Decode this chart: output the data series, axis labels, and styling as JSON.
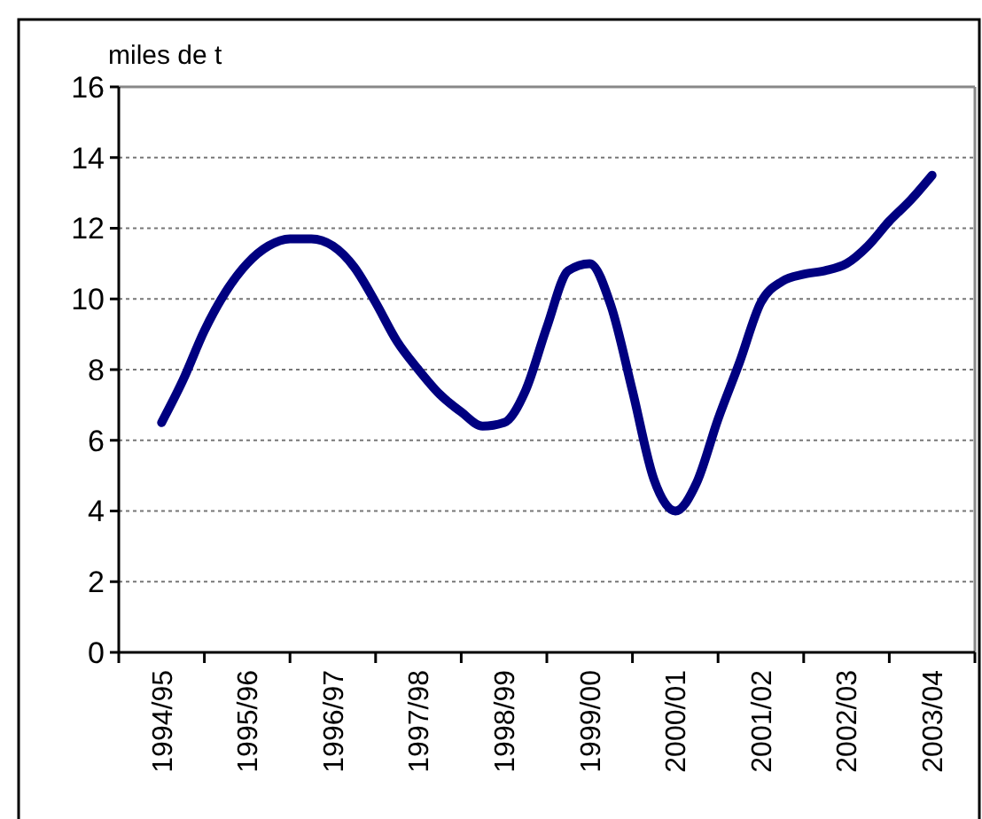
{
  "chart_data": {
    "type": "line",
    "ylabel": "miles de t",
    "categories": [
      "1994/95",
      null,
      null,
      null,
      "1995/96",
      null,
      null,
      null,
      "1996/97",
      null,
      null,
      null,
      "1997/98",
      null,
      null,
      null,
      "1998/99",
      null,
      null,
      null,
      "1999/00",
      null,
      null,
      null,
      "2000/01",
      null,
      null,
      null,
      "2001/02",
      null,
      null,
      null,
      "2002/03",
      null,
      null,
      null,
      "2003/04"
    ],
    "series": [
      {
        "color": "#000080",
        "values": [
          6.5,
          7.7,
          9.1,
          10.2,
          11.0,
          11.5,
          11.7,
          11.7,
          11.5,
          10.9,
          9.9,
          8.8,
          8.0,
          7.3,
          6.8,
          6.4,
          6.5,
          7.4,
          9.2,
          10.8,
          11.0,
          9.8,
          7.4,
          4.9,
          4.0,
          4.8,
          6.6,
          8.2,
          9.9,
          10.5,
          10.7,
          10.8,
          11.0,
          11.5,
          12.2,
          12.8,
          13.5
        ]
      }
    ],
    "ylim": [
      0,
      16
    ],
    "yticks": [
      0,
      2,
      4,
      6,
      8,
      10,
      12,
      14,
      16
    ],
    "grid": "y",
    "marker": "none",
    "line_style": "solid"
  }
}
